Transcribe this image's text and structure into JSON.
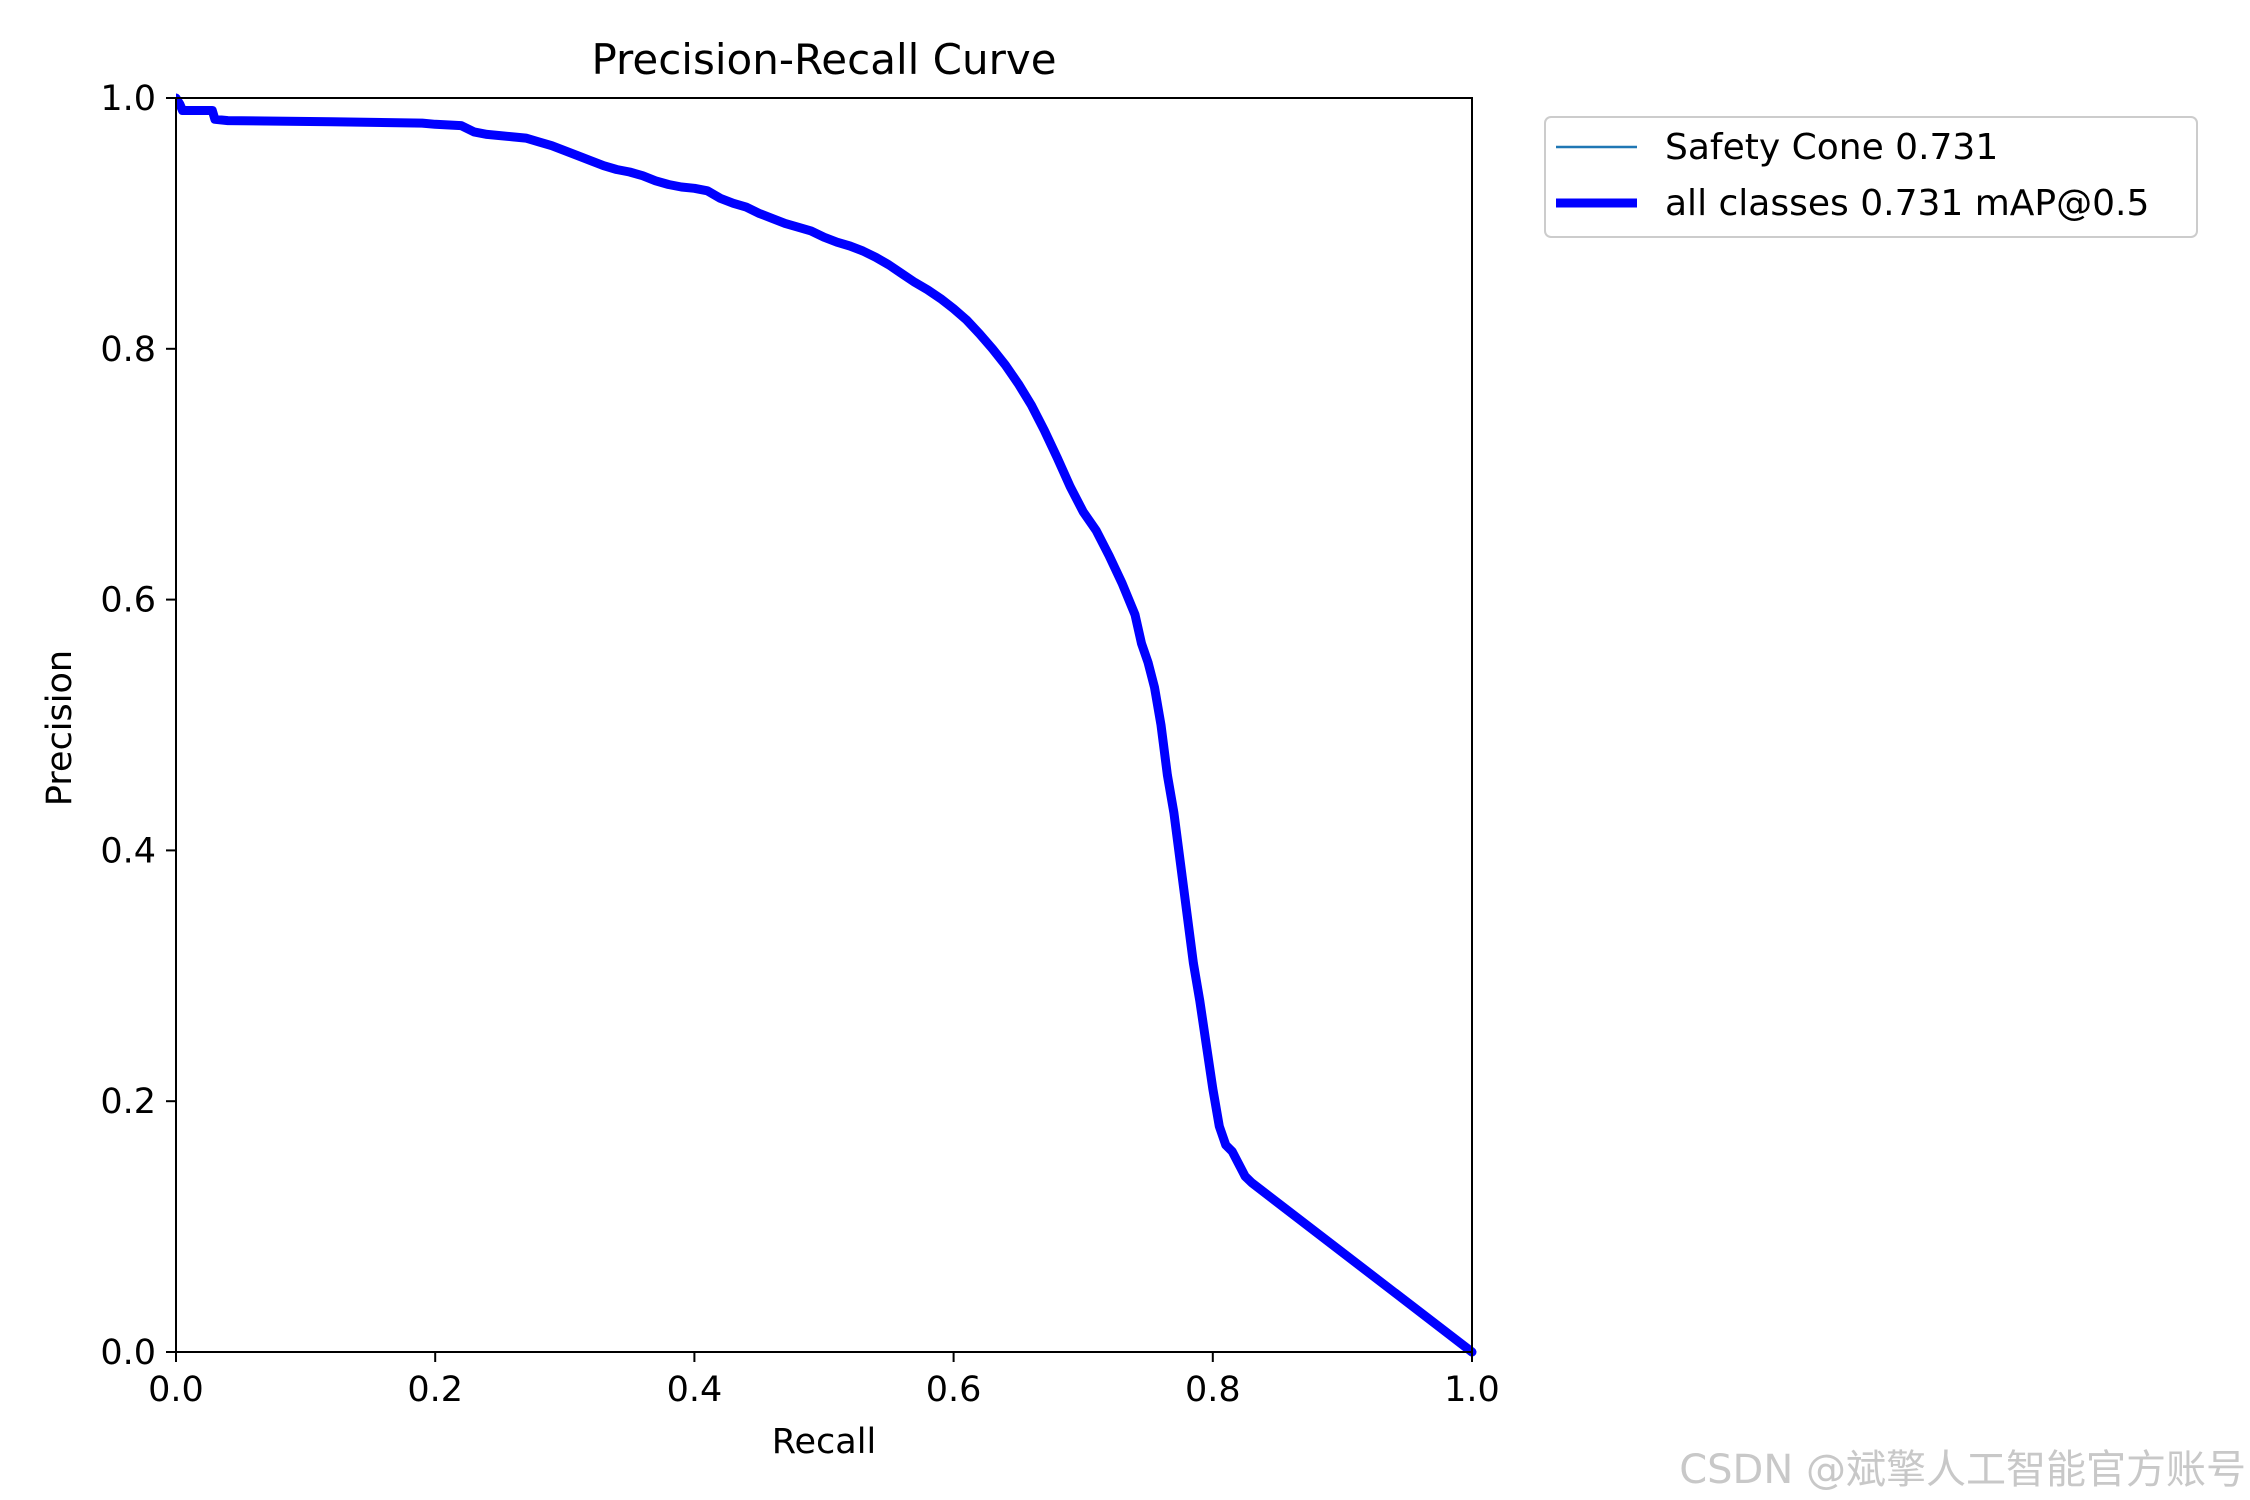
{
  "chart_data": {
    "type": "line",
    "title": "Precision-Recall Curve",
    "xlabel": "Recall",
    "ylabel": "Precision",
    "xlim": [
      0,
      1
    ],
    "ylim": [
      0,
      1
    ],
    "xticks": [
      "0.0",
      "0.2",
      "0.4",
      "0.6",
      "0.8",
      "1.0"
    ],
    "yticks": [
      "0.0",
      "0.2",
      "0.4",
      "0.6",
      "0.8",
      "1.0"
    ],
    "grid": false,
    "legend_position": "outside-top-right",
    "series": [
      {
        "name": "Safety Cone 0.731",
        "color": "#1f77b4",
        "x": [
          0.0,
          0.003,
          0.005,
          0.028,
          0.03,
          0.04,
          0.12,
          0.19,
          0.2,
          0.22,
          0.23,
          0.24,
          0.25,
          0.26,
          0.27,
          0.28,
          0.29,
          0.3,
          0.31,
          0.32,
          0.33,
          0.34,
          0.35,
          0.36,
          0.37,
          0.38,
          0.39,
          0.4,
          0.41,
          0.42,
          0.43,
          0.44,
          0.45,
          0.46,
          0.47,
          0.48,
          0.49,
          0.5,
          0.51,
          0.52,
          0.53,
          0.54,
          0.55,
          0.56,
          0.57,
          0.58,
          0.59,
          0.6,
          0.61,
          0.62,
          0.63,
          0.64,
          0.65,
          0.66,
          0.67,
          0.68,
          0.69,
          0.7,
          0.71,
          0.72,
          0.73,
          0.74,
          0.745,
          0.75,
          0.755,
          0.76,
          0.765,
          0.77,
          0.775,
          0.78,
          0.785,
          0.79,
          0.795,
          0.8,
          0.805,
          0.81,
          0.815,
          0.82,
          0.825,
          0.83,
          1.0
        ],
        "y": [
          1.0,
          0.995,
          0.99,
          0.99,
          0.983,
          0.982,
          0.981,
          0.98,
          0.979,
          0.978,
          0.973,
          0.971,
          0.97,
          0.969,
          0.968,
          0.965,
          0.962,
          0.958,
          0.954,
          0.95,
          0.946,
          0.943,
          0.941,
          0.938,
          0.934,
          0.931,
          0.929,
          0.928,
          0.926,
          0.92,
          0.916,
          0.913,
          0.908,
          0.904,
          0.9,
          0.897,
          0.894,
          0.889,
          0.885,
          0.882,
          0.878,
          0.873,
          0.867,
          0.86,
          0.853,
          0.847,
          0.84,
          0.832,
          0.823,
          0.812,
          0.8,
          0.787,
          0.772,
          0.755,
          0.735,
          0.713,
          0.69,
          0.67,
          0.655,
          0.635,
          0.613,
          0.588,
          0.565,
          0.55,
          0.53,
          0.5,
          0.46,
          0.43,
          0.39,
          0.35,
          0.31,
          0.28,
          0.245,
          0.21,
          0.18,
          0.165,
          0.16,
          0.15,
          0.14,
          0.135,
          0.0
        ]
      },
      {
        "name": "all classes 0.731 mAP@0.5",
        "color": "#0000ff",
        "x": [
          0.0,
          0.003,
          0.005,
          0.028,
          0.03,
          0.04,
          0.12,
          0.19,
          0.2,
          0.22,
          0.23,
          0.24,
          0.25,
          0.26,
          0.27,
          0.28,
          0.29,
          0.3,
          0.31,
          0.32,
          0.33,
          0.34,
          0.35,
          0.36,
          0.37,
          0.38,
          0.39,
          0.4,
          0.41,
          0.42,
          0.43,
          0.44,
          0.45,
          0.46,
          0.47,
          0.48,
          0.49,
          0.5,
          0.51,
          0.52,
          0.53,
          0.54,
          0.55,
          0.56,
          0.57,
          0.58,
          0.59,
          0.6,
          0.61,
          0.62,
          0.63,
          0.64,
          0.65,
          0.66,
          0.67,
          0.68,
          0.69,
          0.7,
          0.71,
          0.72,
          0.73,
          0.74,
          0.745,
          0.75,
          0.755,
          0.76,
          0.765,
          0.77,
          0.775,
          0.78,
          0.785,
          0.79,
          0.795,
          0.8,
          0.805,
          0.81,
          0.815,
          0.82,
          0.825,
          0.83,
          1.0
        ],
        "y": [
          1.0,
          0.995,
          0.99,
          0.99,
          0.983,
          0.982,
          0.981,
          0.98,
          0.979,
          0.978,
          0.973,
          0.971,
          0.97,
          0.969,
          0.968,
          0.965,
          0.962,
          0.958,
          0.954,
          0.95,
          0.946,
          0.943,
          0.941,
          0.938,
          0.934,
          0.931,
          0.929,
          0.928,
          0.926,
          0.92,
          0.916,
          0.913,
          0.908,
          0.904,
          0.9,
          0.897,
          0.894,
          0.889,
          0.885,
          0.882,
          0.878,
          0.873,
          0.867,
          0.86,
          0.853,
          0.847,
          0.84,
          0.832,
          0.823,
          0.812,
          0.8,
          0.787,
          0.772,
          0.755,
          0.735,
          0.713,
          0.69,
          0.67,
          0.655,
          0.635,
          0.613,
          0.588,
          0.565,
          0.55,
          0.53,
          0.5,
          0.46,
          0.43,
          0.39,
          0.35,
          0.31,
          0.28,
          0.245,
          0.21,
          0.18,
          0.165,
          0.16,
          0.15,
          0.14,
          0.135,
          0.0
        ]
      }
    ]
  },
  "watermark": "CSDN @斌擎人工智能官方账号"
}
